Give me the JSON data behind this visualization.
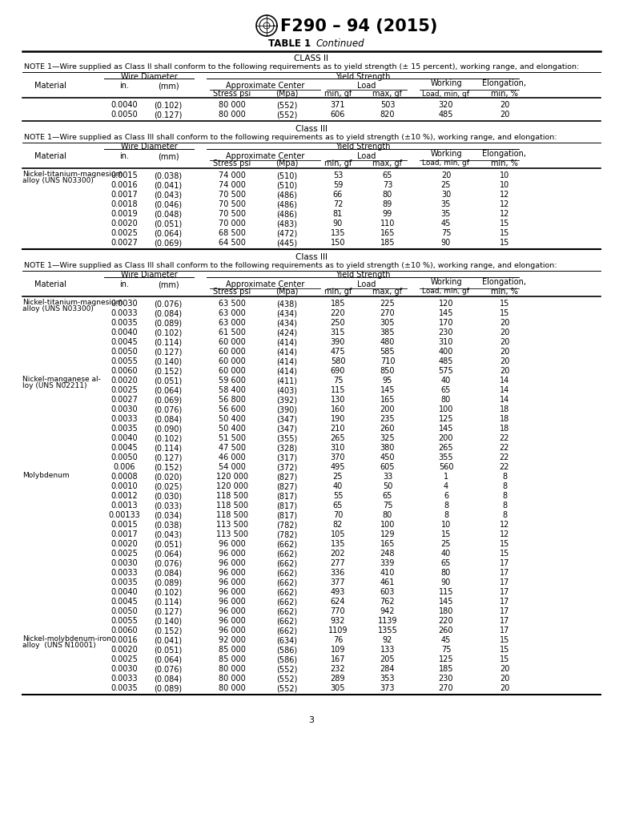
{
  "title": "F290 – 94 (2015)",
  "table_label": "TABLE 1",
  "table_cont": "Continued",
  "bg_color": "#ffffff",
  "page_num": "3",
  "note_ii": "NOTE 1—Wire supplied as Class II shall conform to the following requirements as to yield strength (± 15 percent), working range, and elongation:",
  "note_iii": "NOTE 1—Wire supplied as Class III shall conform to the following requirements as to yield strength (±10 %), working range, and elongation:",
  "sec1_rows": [
    [
      "",
      "0.0040",
      "(0.102)",
      "80 000",
      "(552)",
      "371",
      "503",
      "320",
      "20"
    ],
    [
      "",
      "0.0050",
      "(0.127)",
      "80 000",
      "(552)",
      "606",
      "820",
      "485",
      "20"
    ]
  ],
  "sec2_rows": [
    [
      "Nickel-titanium-magnesium\nalloy (UNS N03300)",
      "0.0015",
      "(0.038)",
      "74 000",
      "(510)",
      "53",
      "65",
      "20",
      "10"
    ],
    [
      "",
      "0.0016",
      "(0.041)",
      "74 000",
      "(510)",
      "59",
      "73",
      "25",
      "10"
    ],
    [
      "",
      "0.0017",
      "(0.043)",
      "70 500",
      "(486)",
      "66",
      "80",
      "30",
      "12"
    ],
    [
      "",
      "0.0018",
      "(0.046)",
      "70 500",
      "(486)",
      "72",
      "89",
      "35",
      "12"
    ],
    [
      "",
      "0.0019",
      "(0.048)",
      "70 500",
      "(486)",
      "81",
      "99",
      "35",
      "12"
    ],
    [
      "",
      "0.0020",
      "(0.051)",
      "70 000",
      "(483)",
      "90",
      "110",
      "45",
      "15"
    ],
    [
      "",
      "0.0025",
      "(0.064)",
      "68 500",
      "(472)",
      "135",
      "165",
      "75",
      "15"
    ],
    [
      "",
      "0.0027",
      "(0.069)",
      "64 500",
      "(445)",
      "150",
      "185",
      "90",
      "15"
    ]
  ],
  "sec3_rows": [
    [
      "Nickel-titanium-magnesium\nalloy (UNS N03300)",
      "0.0030",
      "(0.076)",
      "63 500",
      "(438)",
      "185",
      "225",
      "120",
      "15"
    ],
    [
      "",
      "0.0033",
      "(0.084)",
      "63 000",
      "(434)",
      "220",
      "270",
      "145",
      "15"
    ],
    [
      "",
      "0.0035",
      "(0.089)",
      "63 000",
      "(434)",
      "250",
      "305",
      "170",
      "20"
    ],
    [
      "",
      "0.0040",
      "(0.102)",
      "61 500",
      "(424)",
      "315",
      "385",
      "230",
      "20"
    ],
    [
      "",
      "0.0045",
      "(0.114)",
      "60 000",
      "(414)",
      "390",
      "480",
      "310",
      "20"
    ],
    [
      "",
      "0.0050",
      "(0.127)",
      "60 000",
      "(414)",
      "475",
      "585",
      "400",
      "20"
    ],
    [
      "",
      "0.0055",
      "(0.140)",
      "60 000",
      "(414)",
      "580",
      "710",
      "485",
      "20"
    ],
    [
      "",
      "0.0060",
      "(0.152)",
      "60 000",
      "(414)",
      "690",
      "850",
      "575",
      "20"
    ],
    [
      "Nickel-manganese al-\nloy (UNS N02211)",
      "0.0020",
      "(0.051)",
      "59 600",
      "(411)",
      "75",
      "95",
      "40",
      "14"
    ],
    [
      "",
      "0.0025",
      "(0.064)",
      "58 400",
      "(403)",
      "115",
      "145",
      "65",
      "14"
    ],
    [
      "",
      "0.0027",
      "(0.069)",
      "56 800",
      "(392)",
      "130",
      "165",
      "80",
      "14"
    ],
    [
      "",
      "0.0030",
      "(0.076)",
      "56 600",
      "(390)",
      "160",
      "200",
      "100",
      "18"
    ],
    [
      "",
      "0.0033",
      "(0.084)",
      "50 400",
      "(347)",
      "190",
      "235",
      "125",
      "18"
    ],
    [
      "",
      "0.0035",
      "(0.090)",
      "50 400",
      "(347)",
      "210",
      "260",
      "145",
      "18"
    ],
    [
      "",
      "0.0040",
      "(0.102)",
      "51 500",
      "(355)",
      "265",
      "325",
      "200",
      "22"
    ],
    [
      "",
      "0.0045",
      "(0.114)",
      "47 500",
      "(328)",
      "310",
      "380",
      "265",
      "22"
    ],
    [
      "",
      "0.0050",
      "(0.127)",
      "46 000",
      "(317)",
      "370",
      "450",
      "355",
      "22"
    ],
    [
      "",
      "0.006",
      "(0.152)",
      "54 000",
      "(372)",
      "495",
      "605",
      "560",
      "22"
    ],
    [
      "Molybdenum",
      "0.0008",
      "(0.020)",
      "120 000",
      "(827)",
      "25",
      "33",
      "1",
      "8"
    ],
    [
      "",
      "0.0010",
      "(0.025)",
      "120 000",
      "(827)",
      "40",
      "50",
      "4",
      "8"
    ],
    [
      "",
      "0.0012",
      "(0.030)",
      "118 500",
      "(817)",
      "55",
      "65",
      "6",
      "8"
    ],
    [
      "",
      "0.0013",
      "(0.033)",
      "118 500",
      "(817)",
      "65",
      "75",
      "8",
      "8"
    ],
    [
      "",
      "0.00133",
      "(0.034)",
      "118 500",
      "(817)",
      "70",
      "80",
      "8",
      "8"
    ],
    [
      "",
      "0.0015",
      "(0.038)",
      "113 500",
      "(782)",
      "82",
      "100",
      "10",
      "12"
    ],
    [
      "",
      "0.0017",
      "(0.043)",
      "113 500",
      "(782)",
      "105",
      "129",
      "15",
      "12"
    ],
    [
      "",
      "0.0020",
      "(0.051)",
      "96 000",
      "(662)",
      "135",
      "165",
      "25",
      "15"
    ],
    [
      "",
      "0.0025",
      "(0.064)",
      "96 000",
      "(662)",
      "202",
      "248",
      "40",
      "15"
    ],
    [
      "",
      "0.0030",
      "(0.076)",
      "96 000",
      "(662)",
      "277",
      "339",
      "65",
      "17"
    ],
    [
      "",
      "0.0033",
      "(0.084)",
      "96 000",
      "(662)",
      "336",
      "410",
      "80",
      "17"
    ],
    [
      "",
      "0.0035",
      "(0.089)",
      "96 000",
      "(662)",
      "377",
      "461",
      "90",
      "17"
    ],
    [
      "",
      "0.0040",
      "(0.102)",
      "96 000",
      "(662)",
      "493",
      "603",
      "115",
      "17"
    ],
    [
      "",
      "0.0045",
      "(0.114)",
      "96 000",
      "(662)",
      "624",
      "762",
      "145",
      "17"
    ],
    [
      "",
      "0.0050",
      "(0.127)",
      "96 000",
      "(662)",
      "770",
      "942",
      "180",
      "17"
    ],
    [
      "",
      "0.0055",
      "(0.140)",
      "96 000",
      "(662)",
      "932",
      "1139",
      "220",
      "17"
    ],
    [
      "",
      "0.0060",
      "(0.152)",
      "96 000",
      "(662)",
      "1109",
      "1355",
      "260",
      "17"
    ],
    [
      "Nickel-molybdenum-iron\nalloy  (UNS N10001)",
      "0.0016",
      "(0.041)",
      "92 000",
      "(634)",
      "76",
      "92",
      "45",
      "15"
    ],
    [
      "",
      "0.0020",
      "(0.051)",
      "85 000",
      "(586)",
      "109",
      "133",
      "75",
      "15"
    ],
    [
      "",
      "0.0025",
      "(0.064)",
      "85 000",
      "(586)",
      "167",
      "205",
      "125",
      "15"
    ],
    [
      "",
      "0.0030",
      "(0.076)",
      "80 000",
      "(552)",
      "232",
      "284",
      "185",
      "20"
    ],
    [
      "",
      "0.0033",
      "(0.084)",
      "80 000",
      "(552)",
      "289",
      "353",
      "230",
      "20"
    ],
    [
      "",
      "0.0035",
      "(0.089)",
      "80 000",
      "(552)",
      "305",
      "373",
      "270",
      "20"
    ]
  ],
  "col_x": {
    "mat1": 28,
    "mat2": 28,
    "in_": 155,
    "mm": 210,
    "stress": 290,
    "mpa": 358,
    "min_gf": 422,
    "max_gf": 484,
    "working": 557,
    "elong": 630
  },
  "hdr_x": {
    "wire_diam_l": 130,
    "wire_diam_r": 242,
    "wire_diam_c": 186,
    "yield_l": 258,
    "yield_r": 648,
    "yield_c": 453,
    "approx_l": 262,
    "approx_r": 400,
    "approx_c": 331,
    "load_l": 408,
    "load_r": 508,
    "load_c": 458,
    "working_c": 557,
    "elong_c": 630,
    "wk_load_l": 524,
    "wk_load_r": 648
  }
}
